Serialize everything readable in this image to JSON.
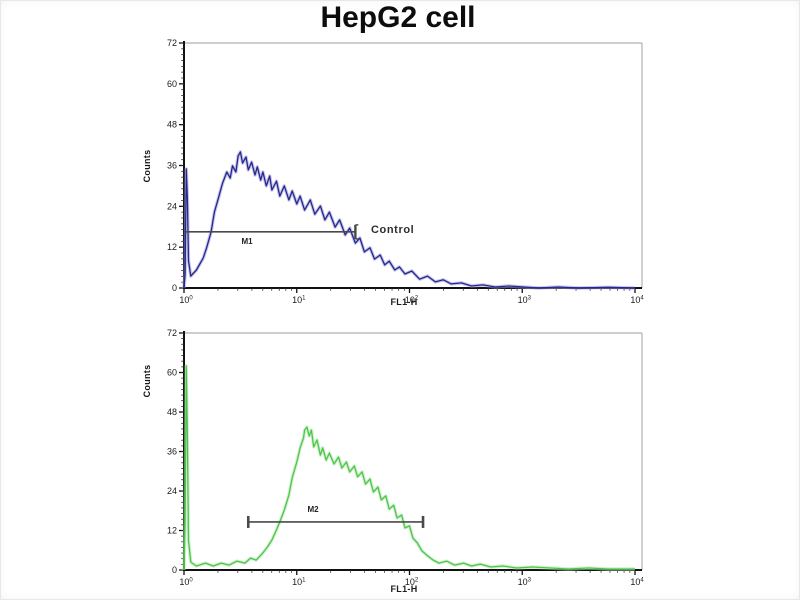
{
  "title": "HepG2 cell",
  "colors": {
    "blue_curve": "#26268e",
    "blue_halo": "#9898d8",
    "green_curve": "#4ec44e",
    "green_halo": "#a9e8a2",
    "axis": "#111111",
    "frame": "#b0b0b0",
    "marker": "#4a4a4a"
  },
  "chart_data": [
    {
      "type": "line",
      "name": "blue-histogram",
      "title": "HepG2 cell",
      "xlabel": "FL1-H",
      "ylabel": "Counts",
      "x_scale": "log10",
      "x_tick_labels": [
        "10^0",
        "10^1",
        "10^2",
        "10^3",
        "10^4"
      ],
      "x_range_decades": [
        0,
        4
      ],
      "y_ticks": [
        0,
        12,
        24,
        36,
        48,
        60,
        72
      ],
      "ylim": [
        0,
        72
      ],
      "curve_color": "#26268e",
      "halo_color": "#9898d8",
      "legend": "none",
      "grid": false,
      "marker": {
        "label": "M1",
        "annotation": "Control",
        "x_decades": [
          0.0,
          1.52
        ],
        "y_counts": 16.5,
        "style": "right-bracket"
      },
      "points": [
        [
          0,
          0
        ],
        [
          0.01,
          4
        ],
        [
          0.02,
          35
        ],
        [
          0.03,
          26
        ],
        [
          0.04,
          8
        ],
        [
          0.06,
          3.5
        ],
        [
          0.11,
          5.3
        ],
        [
          0.17,
          8.8
        ],
        [
          0.2,
          11.8
        ],
        [
          0.24,
          16.5
        ],
        [
          0.27,
          22.3
        ],
        [
          0.31,
          27
        ],
        [
          0.34,
          30.6
        ],
        [
          0.38,
          34.1
        ],
        [
          0.41,
          32.3
        ],
        [
          0.43,
          35.9
        ],
        [
          0.46,
          34.1
        ],
        [
          0.48,
          38.8
        ],
        [
          0.5,
          40
        ],
        [
          0.52,
          36.7
        ],
        [
          0.55,
          38.5
        ],
        [
          0.57,
          34.7
        ],
        [
          0.6,
          37
        ],
        [
          0.63,
          33.2
        ],
        [
          0.65,
          35.6
        ],
        [
          0.68,
          31.7
        ],
        [
          0.7,
          34.1
        ],
        [
          0.73,
          30
        ],
        [
          0.76,
          32.9
        ],
        [
          0.78,
          28.8
        ],
        [
          0.82,
          31.4
        ],
        [
          0.85,
          27
        ],
        [
          0.89,
          30
        ],
        [
          0.93,
          25.9
        ],
        [
          0.96,
          28.5
        ],
        [
          1,
          24.7
        ],
        [
          1.03,
          27
        ],
        [
          1.07,
          22.9
        ],
        [
          1.12,
          25.9
        ],
        [
          1.16,
          21.7
        ],
        [
          1.21,
          24.1
        ],
        [
          1.25,
          20
        ],
        [
          1.29,
          22.3
        ],
        [
          1.34,
          17.9
        ],
        [
          1.38,
          20
        ],
        [
          1.43,
          15.6
        ],
        [
          1.47,
          17.6
        ],
        [
          1.52,
          13.2
        ],
        [
          1.56,
          14.7
        ],
        [
          1.6,
          10.6
        ],
        [
          1.65,
          11.8
        ],
        [
          1.69,
          8.5
        ],
        [
          1.74,
          9.7
        ],
        [
          1.78,
          6.8
        ],
        [
          1.82,
          7.9
        ],
        [
          1.87,
          5.3
        ],
        [
          1.91,
          6.2
        ],
        [
          1.96,
          4.1
        ],
        [
          2.02,
          5
        ],
        [
          2.09,
          2.6
        ],
        [
          2.16,
          3.5
        ],
        [
          2.23,
          1.8
        ],
        [
          2.3,
          2.4
        ],
        [
          2.37,
          1.2
        ],
        [
          2.46,
          1.5
        ],
        [
          2.55,
          0.6
        ],
        [
          2.65,
          0.9
        ],
        [
          2.76,
          0.3
        ],
        [
          2.88,
          0.6
        ],
        [
          3.01,
          0.3
        ],
        [
          3.15,
          0
        ],
        [
          3.32,
          0.3
        ],
        [
          3.5,
          0
        ],
        [
          3.76,
          0.2
        ],
        [
          4,
          0
        ]
      ]
    },
    {
      "type": "line",
      "name": "green-histogram",
      "title": "HepG2 cell",
      "xlabel": "FL1-H",
      "ylabel": "Counts",
      "x_scale": "log10",
      "x_tick_labels": [
        "10^0",
        "10^1",
        "10^2",
        "10^3",
        "10^4"
      ],
      "x_range_decades": [
        0,
        4
      ],
      "y_ticks": [
        0,
        12,
        24,
        36,
        48,
        60,
        72
      ],
      "ylim": [
        0,
        72
      ],
      "curve_color": "#4ec44e",
      "halo_color": "#a9e8a2",
      "legend": "none",
      "grid": false,
      "marker": {
        "label": "M2",
        "annotation": "",
        "x_decades": [
          0.57,
          2.12
        ],
        "y_counts": 14.6,
        "style": "end-caps"
      },
      "points": [
        [
          0,
          0
        ],
        [
          0.01,
          15
        ],
        [
          0.02,
          62
        ],
        [
          0.03,
          40
        ],
        [
          0.04,
          9
        ],
        [
          0.06,
          2.4
        ],
        [
          0.11,
          1.2
        ],
        [
          0.19,
          2.1
        ],
        [
          0.26,
          1.2
        ],
        [
          0.33,
          2.1
        ],
        [
          0.4,
          1.5
        ],
        [
          0.47,
          2.7
        ],
        [
          0.54,
          2.1
        ],
        [
          0.59,
          3.6
        ],
        [
          0.64,
          3
        ],
        [
          0.7,
          5.2
        ],
        [
          0.74,
          7
        ],
        [
          0.78,
          9.1
        ],
        [
          0.82,
          12.2
        ],
        [
          0.85,
          14.6
        ],
        [
          0.89,
          18.2
        ],
        [
          0.93,
          22.8
        ],
        [
          0.96,
          28
        ],
        [
          1,
          32.8
        ],
        [
          1.03,
          37.1
        ],
        [
          1.06,
          40.1
        ],
        [
          1.07,
          42.5
        ],
        [
          1.09,
          43.4
        ],
        [
          1.11,
          40.7
        ],
        [
          1.13,
          42.5
        ],
        [
          1.15,
          37.4
        ],
        [
          1.18,
          39.5
        ],
        [
          1.21,
          34.9
        ],
        [
          1.23,
          37.1
        ],
        [
          1.26,
          33.4
        ],
        [
          1.29,
          35.5
        ],
        [
          1.33,
          32.2
        ],
        [
          1.37,
          34.3
        ],
        [
          1.4,
          31
        ],
        [
          1.44,
          32.8
        ],
        [
          1.47,
          29.8
        ],
        [
          1.51,
          31.6
        ],
        [
          1.54,
          28.3
        ],
        [
          1.58,
          29.8
        ],
        [
          1.61,
          26.1
        ],
        [
          1.65,
          27.6
        ],
        [
          1.68,
          23.7
        ],
        [
          1.72,
          25.2
        ],
        [
          1.75,
          21.3
        ],
        [
          1.79,
          22.5
        ],
        [
          1.82,
          18.5
        ],
        [
          1.86,
          19.7
        ],
        [
          1.89,
          15.8
        ],
        [
          1.93,
          16.7
        ],
        [
          1.96,
          12.8
        ],
        [
          2,
          13.4
        ],
        [
          2.03,
          9.7
        ],
        [
          2.07,
          8.2
        ],
        [
          2.11,
          5.8
        ],
        [
          2.16,
          4.3
        ],
        [
          2.21,
          3
        ],
        [
          2.26,
          2.1
        ],
        [
          2.33,
          2.7
        ],
        [
          2.4,
          1.5
        ],
        [
          2.48,
          2.1
        ],
        [
          2.55,
          1.2
        ],
        [
          2.63,
          1.8
        ],
        [
          2.72,
          0.9
        ],
        [
          2.83,
          1.2
        ],
        [
          2.95,
          0.6
        ],
        [
          3.09,
          0.9
        ],
        [
          3.25,
          0.6
        ],
        [
          3.41,
          0.3
        ],
        [
          3.59,
          0.6
        ],
        [
          3.76,
          0.3
        ],
        [
          4,
          0.3
        ]
      ]
    }
  ]
}
